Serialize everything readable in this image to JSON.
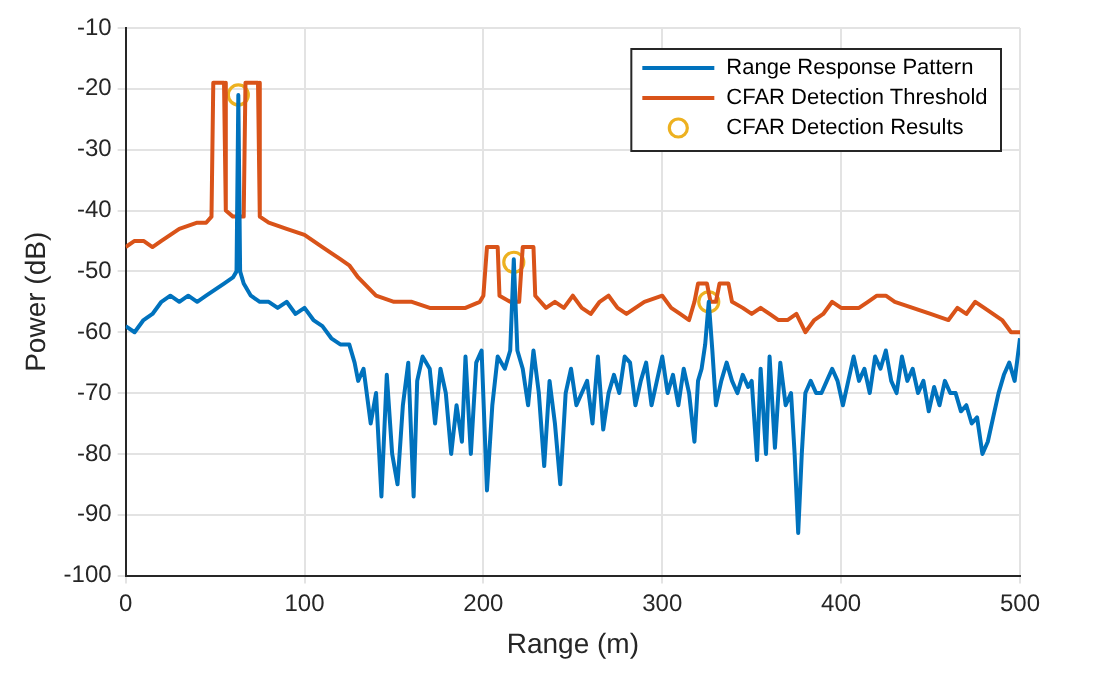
{
  "chart_data": {
    "type": "line",
    "xlabel": "Range (m)",
    "ylabel": "Power (dB)",
    "xlim": [
      0,
      500
    ],
    "xticks": [
      0,
      100,
      200,
      300,
      400,
      500
    ],
    "ylim": [
      -100,
      -10
    ],
    "yticks": [
      -100,
      -90,
      -80,
      -70,
      -60,
      -50,
      -40,
      -30,
      -20,
      -10
    ],
    "grid": true,
    "legend": "top right",
    "series": [
      {
        "name": "Range Response Pattern",
        "type": "line",
        "marker": "none",
        "color": "#0072bd",
        "x": [
          0,
          5,
          10,
          15,
          20,
          25,
          30,
          35,
          40,
          45,
          50,
          55,
          60,
          62,
          63,
          64,
          66,
          70,
          75,
          80,
          85,
          90,
          95,
          100,
          105,
          110,
          115,
          120,
          125,
          128,
          130,
          133,
          137,
          140,
          143,
          146,
          149,
          152,
          155,
          158,
          161,
          163,
          166,
          170,
          173,
          176,
          179,
          182,
          185,
          188,
          190,
          193,
          196,
          199,
          202,
          205,
          208,
          212,
          215,
          217,
          219,
          222,
          225,
          228,
          231,
          234,
          237,
          240,
          243,
          246,
          249,
          252,
          255,
          258,
          261,
          264,
          267,
          270,
          273,
          276,
          279,
          282,
          285,
          288,
          291,
          294,
          297,
          300,
          303,
          306,
          309,
          312,
          315,
          318,
          320,
          322,
          324,
          326,
          328,
          330,
          333,
          336,
          339,
          342,
          345,
          348,
          350,
          353,
          355,
          358,
          360,
          363,
          366,
          369,
          372,
          374,
          376,
          378,
          380,
          383,
          386,
          389,
          392,
          395,
          398,
          401,
          404,
          407,
          410,
          413,
          416,
          419,
          422,
          425,
          428,
          431,
          434,
          437,
          440,
          443,
          446,
          449,
          452,
          455,
          458,
          461,
          464,
          467,
          470,
          473,
          476,
          479,
          482,
          485,
          488,
          491,
          494,
          497,
          500
        ],
        "values": [
          -59,
          -60,
          -58,
          -57,
          -55,
          -54,
          -55,
          -54,
          -55,
          -54,
          -53,
          -52,
          -51,
          -50,
          -21,
          -50,
          -52,
          -54,
          -55,
          -55,
          -56,
          -55,
          -57,
          -56,
          -58,
          -59,
          -61,
          -62,
          -62,
          -65,
          -68,
          -66,
          -75,
          -70,
          -87,
          -67,
          -80,
          -85,
          -72,
          -65,
          -87,
          -68,
          -64,
          -66,
          -75,
          -66,
          -70,
          -80,
          -72,
          -78,
          -64,
          -80,
          -65,
          -63,
          -86,
          -72,
          -64,
          -66,
          -63,
          -48,
          -63,
          -66,
          -72,
          -63,
          -70,
          -82,
          -68,
          -75,
          -85,
          -70,
          -66,
          -72,
          -70,
          -68,
          -75,
          -64,
          -76,
          -70,
          -67,
          -70,
          -64,
          -65,
          -72,
          -68,
          -65,
          -72,
          -68,
          -64,
          -70,
          -67,
          -72,
          -66,
          -70,
          -78,
          -68,
          -66,
          -62,
          -55,
          -63,
          -72,
          -68,
          -65,
          -68,
          -70,
          -67,
          -69,
          -68,
          -81,
          -66,
          -80,
          -64,
          -79,
          -65,
          -72,
          -70,
          -80,
          -93,
          -80,
          -70,
          -68,
          -70,
          -70,
          -68,
          -66,
          -68,
          -72,
          -68,
          -64,
          -68,
          -66,
          -70,
          -64,
          -66,
          -63,
          -68,
          -70,
          -64,
          -68,
          -66,
          -70,
          -68,
          -73,
          -69,
          -72,
          -68,
          -70,
          -70,
          -73,
          -72,
          -75,
          -74,
          -80,
          -78,
          -74,
          -70,
          -67,
          -65,
          -68,
          -61
        ]
      },
      {
        "name": "CFAR Detection Threshold",
        "type": "line",
        "marker": "none",
        "color": "#d95319",
        "x": [
          0,
          5,
          10,
          15,
          20,
          25,
          30,
          40,
          45,
          48,
          49,
          54,
          55,
          56,
          60,
          66,
          67,
          73,
          74,
          75,
          80,
          90,
          100,
          110,
          120,
          125,
          130,
          140,
          150,
          160,
          170,
          180,
          190,
          198,
          200,
          202,
          208,
          209,
          215,
          220,
          222,
          228,
          229,
          235,
          240,
          245,
          250,
          255,
          260,
          265,
          270,
          275,
          280,
          290,
          300,
          305,
          310,
          315,
          318,
          320,
          325,
          327,
          330,
          332,
          337,
          339,
          345,
          350,
          355,
          360,
          365,
          370,
          375,
          380,
          385,
          390,
          395,
          400,
          410,
          415,
          420,
          425,
          430,
          440,
          450,
          460,
          465,
          470,
          475,
          480,
          490,
          495,
          500
        ],
        "values": [
          -46,
          -45,
          -45,
          -46,
          -45,
          -44,
          -43,
          -42,
          -42,
          -41,
          -19,
          -19,
          -19,
          -40,
          -41,
          -41,
          -19,
          -19,
          -19,
          -41,
          -42,
          -43,
          -44,
          -46,
          -48,
          -49,
          -51,
          -54,
          -55,
          -55,
          -56,
          -56,
          -56,
          -55,
          -54,
          -46,
          -46,
          -54,
          -55,
          -55,
          -46,
          -46,
          -54,
          -56,
          -55,
          -56,
          -54,
          -56,
          -57,
          -55,
          -54,
          -56,
          -57,
          -55,
          -54,
          -56,
          -57,
          -58,
          -55,
          -52,
          -52,
          -55,
          -55,
          -52,
          -52,
          -55,
          -56,
          -57,
          -56,
          -57,
          -58,
          -58,
          -57,
          -60,
          -58,
          -57,
          -55,
          -56,
          -56,
          -55,
          -54,
          -54,
          -55,
          -56,
          -57,
          -58,
          -56,
          -57,
          -55,
          -56,
          -58,
          -60,
          -60
        ]
      },
      {
        "name": "CFAR Detection Results",
        "type": "scatter",
        "marker": "circle",
        "color": "#edb120",
        "x": [
          63,
          217,
          326
        ],
        "values": [
          -21,
          -48.5,
          -55
        ]
      }
    ]
  }
}
